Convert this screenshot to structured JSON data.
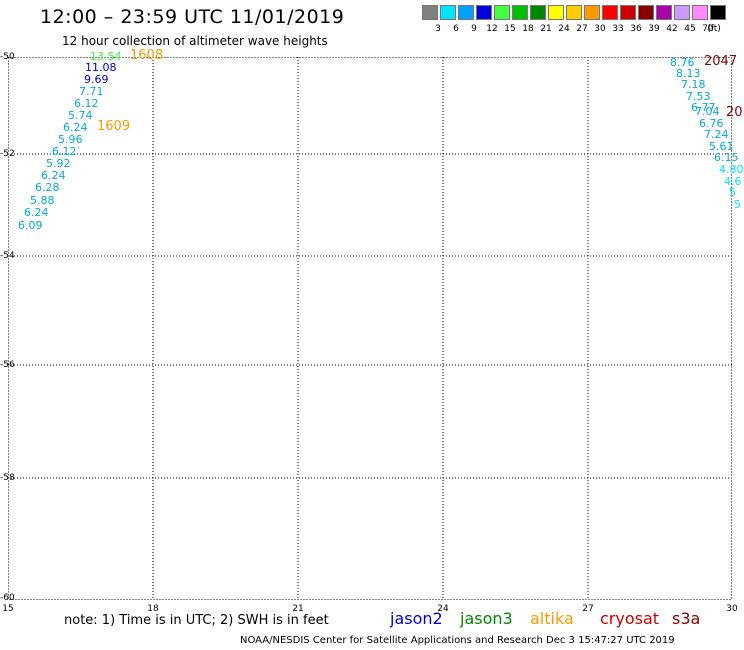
{
  "header": {
    "title": "12:00 – 23:59 UTC 11/01/2019",
    "subtitle": "12 hour collection of altimeter wave heights"
  },
  "scale": {
    "unit_label": "(ft)",
    "items": [
      {
        "label": "3",
        "color": "#808080"
      },
      {
        "label": "6",
        "color": "#00e5ff"
      },
      {
        "label": "9",
        "color": "#00a0ff"
      },
      {
        "label": "12",
        "color": "#0000dd"
      },
      {
        "label": "15",
        "color": "#44ff44"
      },
      {
        "label": "18",
        "color": "#00c000"
      },
      {
        "label": "21",
        "color": "#008800"
      },
      {
        "label": "24",
        "color": "#ffff00"
      },
      {
        "label": "27",
        "color": "#ffcc00"
      },
      {
        "label": "30",
        "color": "#ff9900"
      },
      {
        "label": "33",
        "color": "#ff0000"
      },
      {
        "label": "36",
        "color": "#cc0000"
      },
      {
        "label": "39",
        "color": "#880000"
      },
      {
        "label": "42",
        "color": "#aa00aa"
      },
      {
        "label": "45",
        "color": "#cc99ff"
      },
      {
        "label": "70",
        "color": "#ff88ff"
      },
      {
        "label": "",
        "color": "#000000"
      }
    ]
  },
  "map": {
    "lat_labels": [
      "-50",
      "-52",
      "-54",
      "-56",
      "-58",
      "-60"
    ],
    "lon_labels": [
      "15",
      "18",
      "21",
      "24",
      "27",
      "30"
    ],
    "track_left": {
      "time_labels": [
        {
          "text": "1608",
          "color": "#ff9900"
        },
        {
          "text": "1609",
          "color": "#ff9900"
        }
      ],
      "points": [
        {
          "v": "13.54",
          "c": "#44ee44"
        },
        {
          "v": "11.08",
          "c": "#0000cc"
        },
        {
          "v": "9.69",
          "c": "#0000cc"
        },
        {
          "v": "7.71",
          "c": "#00aadd"
        },
        {
          "v": "6.12",
          "c": "#00aadd"
        },
        {
          "v": "5.74",
          "c": "#00aadd"
        },
        {
          "v": "6.24",
          "c": "#00aadd"
        },
        {
          "v": "5.96",
          "c": "#00aadd"
        },
        {
          "v": "6.12",
          "c": "#00aadd"
        },
        {
          "v": "5.92",
          "c": "#00aadd"
        },
        {
          "v": "6.24",
          "c": "#00aadd"
        },
        {
          "v": "6.28",
          "c": "#00aadd"
        },
        {
          "v": "5.88",
          "c": "#00aadd"
        },
        {
          "v": "6.24",
          "c": "#00aadd"
        },
        {
          "v": "6.09",
          "c": "#00aadd"
        }
      ]
    },
    "track_right": {
      "time_labels": [
        {
          "text": "2047",
          "color": "#880000"
        },
        {
          "text": "20",
          "color": "#880000"
        }
      ],
      "points": [
        {
          "v": "8.76",
          "c": "#00aadd"
        },
        {
          "v": "8.13",
          "c": "#00aadd"
        },
        {
          "v": "7.18",
          "c": "#00aadd"
        },
        {
          "v": "7.53",
          "c": "#00aadd"
        },
        {
          "v": "6.77",
          "c": "#00aadd"
        },
        {
          "v": "7.04",
          "c": "#00aadd"
        },
        {
          "v": "6.76",
          "c": "#00aadd"
        },
        {
          "v": "7.24",
          "c": "#00aadd"
        },
        {
          "v": "5.61",
          "c": "#00aadd"
        },
        {
          "v": "6.15",
          "c": "#00aadd"
        },
        {
          "v": "4.80",
          "c": "#00e5ff"
        },
        {
          "v": "4.6",
          "c": "#00e5ff"
        },
        {
          "v": "5",
          "c": "#00e5ff"
        },
        {
          "v": "5",
          "c": "#00e5ff"
        }
      ]
    }
  },
  "note": "note:  1) Time is in UTC;  2) SWH is in feet",
  "satellites": [
    {
      "name": "jason2",
      "color": "#0000dd"
    },
    {
      "name": "jason3",
      "color": "#008800"
    },
    {
      "name": "altika",
      "color": "#ff9900"
    },
    {
      "name": "cryosat",
      "color": "#cc0000"
    },
    {
      "name": "s3a",
      "color": "#880000"
    }
  ],
  "footer": "NOAA/NESDIS Center for Satellite Applications and Research    Dec  3 15:47:27 UTC 2019"
}
